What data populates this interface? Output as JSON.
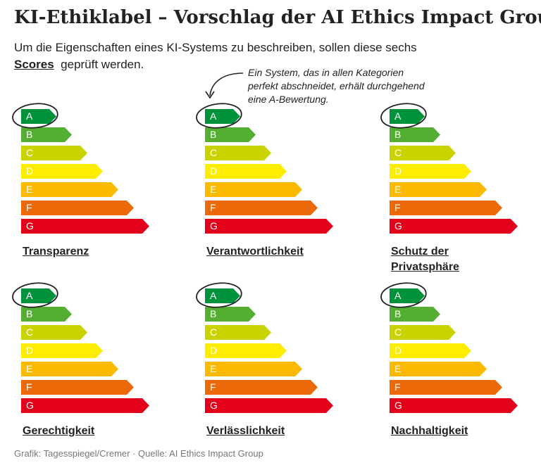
{
  "title": "KI-Ethiklabel – Vorschlag der AI Ethics Impact Group",
  "subtitle": {
    "line1": "Um die Eigenschaften eines KI-Systems zu beschreiben, sollen diese sechs",
    "bold": "Scores",
    "rest": "geprüft werden."
  },
  "annotation": [
    "Ein System, das in allen Kategorien",
    "perfekt abschneidet, erhält durchgehend",
    "eine A-Bewertung."
  ],
  "grades": [
    {
      "label": "A",
      "color": "#00933c"
    },
    {
      "label": "B",
      "color": "#54ae32"
    },
    {
      "label": "C",
      "color": "#c8d300"
    },
    {
      "label": "D",
      "color": "#ffed00"
    },
    {
      "label": "E",
      "color": "#fbba00"
    },
    {
      "label": "F",
      "color": "#eb6909"
    },
    {
      "label": "G",
      "color": "#e2001a"
    }
  ],
  "panels": [
    "Transparenz",
    "Verantwortlichkeit",
    "Schutz der Privatsphäre",
    "Gerechtigkeit",
    "Verlässlichkeit",
    "Nachhaltigkeit"
  ],
  "source": "Grafik: Tagesspiegel/Cremer · Quelle: AI Ethics Impact Group"
}
